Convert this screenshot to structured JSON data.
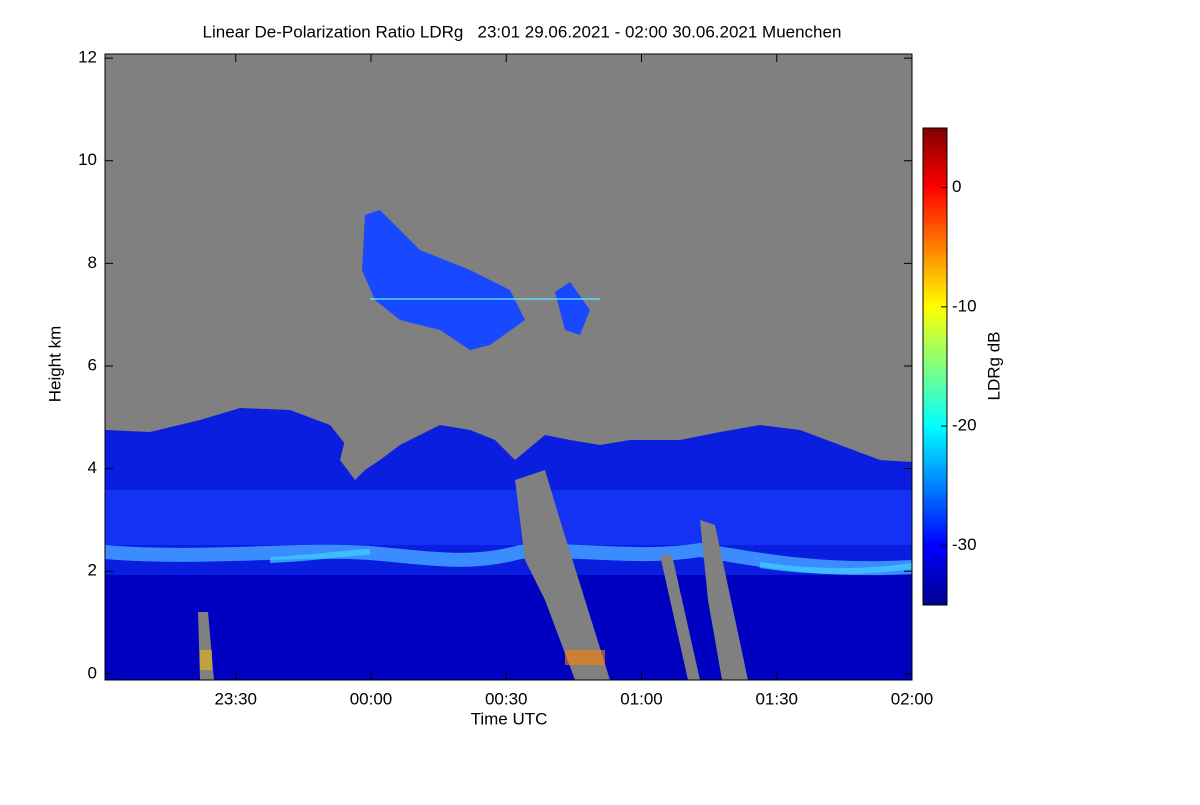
{
  "chart_data": {
    "type": "heatmap",
    "title": "Linear De-Polarization Ratio LDRg   23:01 29.06.2021 - 02:00 30.06.2021 Muenchen",
    "xlabel": "Time UTC",
    "ylabel": "Height km",
    "colorbar_label": "LDRg dB",
    "xlim": [
      1,
      180
    ],
    "xticks": [
      {
        "value": 30,
        "label": "23:30"
      },
      {
        "value": 60,
        "label": "00:00"
      },
      {
        "value": 90,
        "label": "00:30"
      },
      {
        "value": 120,
        "label": "01:00"
      },
      {
        "value": 150,
        "label": "01:30"
      },
      {
        "value": 180,
        "label": "02:00"
      }
    ],
    "ylim": [
      -0.12,
      12.08
    ],
    "yticks": [
      0,
      2,
      4,
      6,
      8,
      10,
      12
    ],
    "clim": [
      -35,
      5
    ],
    "cticks": [
      -30,
      -20,
      -10,
      0
    ],
    "colormap": [
      "#00008f",
      "#0000ff",
      "#0080ff",
      "#00ffff",
      "#80ff80",
      "#ffff00",
      "#ff8000",
      "#ff0000",
      "#800000"
    ]
  }
}
